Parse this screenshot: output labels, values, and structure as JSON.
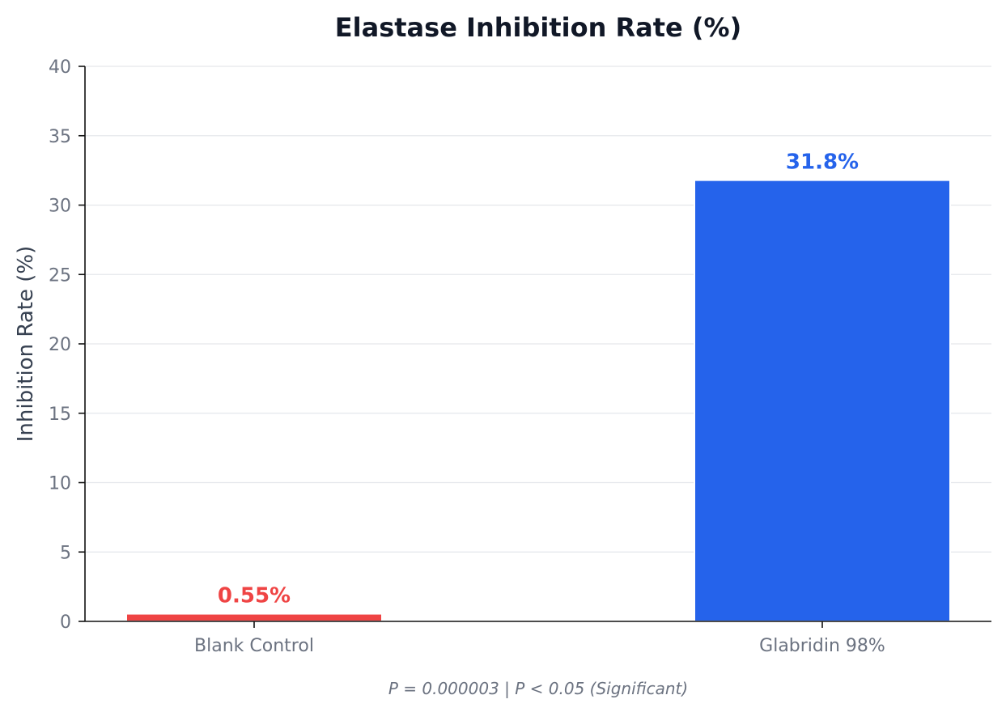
{
  "chart_data": {
    "type": "bar",
    "title": "Elastase Inhibition Rate (%)",
    "xlabel": "",
    "ylabel": "Inhibition Rate (%)",
    "categories": [
      "Blank Control",
      "Glabridin 98%"
    ],
    "values": [
      0.55,
      31.8
    ],
    "data_labels": [
      "0.55%",
      "31.8%"
    ],
    "colors": [
      "#ef4444",
      "#2563eb"
    ],
    "ylim": [
      0,
      40
    ],
    "yticks": [
      0,
      5,
      10,
      15,
      20,
      25,
      30,
      35,
      40
    ],
    "grid": true,
    "legend": "none",
    "footnote": "P = 0.000003  |  P < 0.05 (Significant)"
  }
}
